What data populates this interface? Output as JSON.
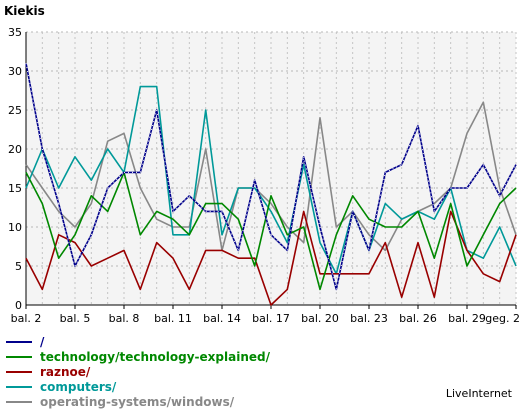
{
  "chart_data": {
    "type": "line",
    "title": "Kiekis",
    "xlabel": "",
    "ylabel": "",
    "ylim": [
      0,
      35
    ],
    "yticks": [
      0,
      5,
      10,
      15,
      20,
      25,
      30,
      35
    ],
    "grid": true,
    "legend_position": "bottom",
    "x": [
      "bal. 2",
      "bal. 3",
      "bal. 4",
      "bal. 5",
      "bal. 6",
      "bal. 7",
      "bal. 8",
      "bal. 9",
      "bal. 10",
      "bal. 11",
      "bal. 12",
      "bal. 13",
      "bal. 14",
      "bal. 15",
      "bal. 16",
      "bal. 17",
      "bal. 18",
      "bal. 19",
      "bal. 20",
      "bal. 21",
      "bal. 22",
      "bal. 23",
      "bal. 24",
      "bal. 25",
      "bal. 26",
      "bal. 27",
      "bal. 28",
      "bal. 29",
      "bal. 30",
      "geg. 1",
      "geg. 2"
    ],
    "x_tick_labels": [
      "bal. 2",
      "bal. 5",
      "bal. 8",
      "bal. 11",
      "bal. 14",
      "bal. 17",
      "bal. 20",
      "bal. 23",
      "bal. 26",
      "bal. 29",
      "geg. 2"
    ],
    "series": [
      {
        "name": "/",
        "color": "#00008b",
        "dotted": true,
        "values": [
          31,
          20,
          13,
          5,
          9,
          15,
          17,
          17,
          25,
          12,
          14,
          12,
          12,
          7,
          16,
          9,
          7,
          19,
          10,
          2,
          12,
          7,
          17,
          18,
          23,
          12,
          15,
          15,
          18,
          14,
          18
        ]
      },
      {
        "name": "technology/technology-explained/",
        "color": "#008800",
        "values": [
          17,
          13,
          6,
          9,
          14,
          12,
          17,
          9,
          12,
          11,
          9,
          13,
          13,
          11,
          5,
          14,
          9,
          10,
          2,
          9,
          14,
          11,
          10,
          10,
          12,
          6,
          13,
          5,
          9,
          13,
          15
        ]
      },
      {
        "name": "raznoe/",
        "color": "#990000",
        "values": [
          6,
          2,
          9,
          8,
          5,
          6,
          7,
          2,
          8,
          6,
          2,
          7,
          7,
          6,
          6,
          0,
          2,
          12,
          4,
          4,
          4,
          4,
          8,
          1,
          8,
          1,
          12,
          7,
          4,
          3,
          9
        ]
      },
      {
        "name": "computers/",
        "color": "#009999",
        "values": [
          15,
          20,
          15,
          19,
          16,
          20,
          17,
          28,
          28,
          9,
          9,
          25,
          9,
          15,
          15,
          12,
          8,
          18,
          8,
          4,
          12,
          7,
          13,
          11,
          12,
          11,
          15,
          7,
          6,
          10,
          5
        ]
      },
      {
        "name": "operating-systems/windows/",
        "color": "#888888",
        "values": [
          18,
          15,
          12,
          10,
          13,
          21,
          22,
          15,
          11,
          10,
          10,
          20,
          7,
          15,
          15,
          13,
          10,
          8,
          24,
          10,
          12,
          9,
          7,
          11,
          12,
          13,
          15,
          22,
          26,
          15,
          9
        ]
      }
    ]
  },
  "branding": "LiveInternet"
}
